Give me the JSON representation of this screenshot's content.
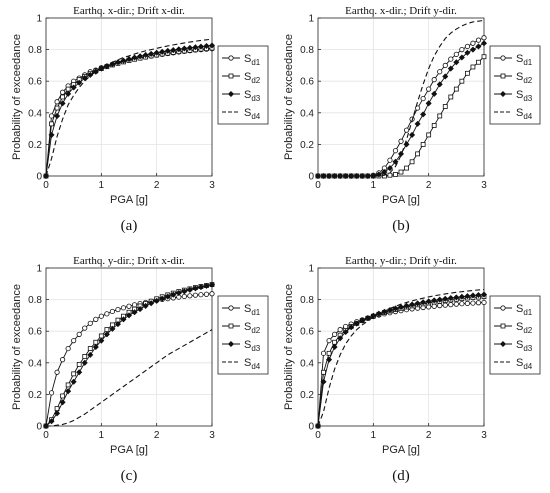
{
  "chart_data": [
    {
      "type": "line",
      "panel_label": "(a)",
      "title": "Earthq. x-dir.; Drift x-dir.",
      "xlabel": "PGA [g]",
      "ylabel": "Probability of exceedance",
      "xlim": [
        0,
        3
      ],
      "ylim": [
        0,
        1
      ],
      "xticks": [
        "0",
        "1",
        "2",
        "3"
      ],
      "yticks": [
        "0",
        "0.2",
        "0.4",
        "0.6",
        "0.8",
        "1"
      ],
      "grid": true,
      "legend_position": "right",
      "x": [
        0,
        0.1,
        0.2,
        0.3,
        0.4,
        0.5,
        0.6,
        0.7,
        0.8,
        0.9,
        1.0,
        1.1,
        1.2,
        1.3,
        1.4,
        1.5,
        1.6,
        1.7,
        1.8,
        1.9,
        2.0,
        2.1,
        2.2,
        2.3,
        2.4,
        2.5,
        2.6,
        2.7,
        2.8,
        2.9,
        3.0
      ],
      "series": [
        {
          "label_main": "S",
          "label_sub": "d1",
          "marker": "circle",
          "dash": "solid",
          "values": [
            0,
            0.38,
            0.47,
            0.53,
            0.57,
            0.6,
            0.62,
            0.64,
            0.66,
            0.67,
            0.685,
            0.695,
            0.705,
            0.715,
            0.725,
            0.733,
            0.74,
            0.747,
            0.753,
            0.759,
            0.765,
            0.77,
            0.775,
            0.78,
            0.785,
            0.789,
            0.793,
            0.797,
            0.8,
            0.803,
            0.806
          ]
        },
        {
          "label_main": "S",
          "label_sub": "d2",
          "marker": "square",
          "dash": "solid",
          "values": [
            0,
            0.33,
            0.43,
            0.5,
            0.55,
            0.58,
            0.61,
            0.63,
            0.65,
            0.665,
            0.68,
            0.692,
            0.703,
            0.713,
            0.722,
            0.731,
            0.739,
            0.746,
            0.753,
            0.76,
            0.766,
            0.772,
            0.777,
            0.782,
            0.787,
            0.791,
            0.795,
            0.799,
            0.803,
            0.806,
            0.81
          ]
        },
        {
          "label_main": "S",
          "label_sub": "d3",
          "marker": "diamond",
          "dash": "solid",
          "values": [
            0,
            0.26,
            0.38,
            0.46,
            0.52,
            0.56,
            0.59,
            0.62,
            0.64,
            0.66,
            0.68,
            0.695,
            0.708,
            0.72,
            0.73,
            0.74,
            0.75,
            0.758,
            0.766,
            0.773,
            0.78,
            0.786,
            0.792,
            0.797,
            0.802,
            0.807,
            0.811,
            0.815,
            0.819,
            0.823,
            0.826
          ]
        },
        {
          "label_main": "S",
          "label_sub": "d4",
          "marker": "none",
          "dash": "dashed",
          "values": [
            0,
            0.11,
            0.25,
            0.36,
            0.45,
            0.51,
            0.56,
            0.6,
            0.635,
            0.66,
            0.685,
            0.705,
            0.72,
            0.735,
            0.75,
            0.76,
            0.772,
            0.783,
            0.792,
            0.8,
            0.808,
            0.816,
            0.823,
            0.83,
            0.836,
            0.842,
            0.848,
            0.853,
            0.858,
            0.862,
            0.866
          ]
        }
      ]
    },
    {
      "type": "line",
      "panel_label": "(b)",
      "title": "Earthq. x-dir.; Drift y-dir.",
      "xlabel": "PGA [g]",
      "ylabel": "Probability of exceedance",
      "xlim": [
        0,
        3
      ],
      "ylim": [
        0,
        1
      ],
      "xticks": [
        "0",
        "1",
        "2",
        "3"
      ],
      "yticks": [
        "0",
        "0.2",
        "0.4",
        "0.6",
        "0.8",
        "1"
      ],
      "grid": true,
      "legend_position": "right",
      "x": [
        0,
        0.1,
        0.2,
        0.3,
        0.4,
        0.5,
        0.6,
        0.7,
        0.8,
        0.9,
        1.0,
        1.1,
        1.2,
        1.3,
        1.4,
        1.5,
        1.6,
        1.7,
        1.8,
        1.9,
        2.0,
        2.1,
        2.2,
        2.3,
        2.4,
        2.5,
        2.6,
        2.7,
        2.8,
        2.9,
        3.0
      ],
      "series": [
        {
          "label_main": "S",
          "label_sub": "d1",
          "marker": "circle",
          "dash": "solid",
          "values": [
            0,
            0,
            0,
            0,
            0,
            0,
            0,
            0,
            0,
            0,
            0.005,
            0.02,
            0.05,
            0.1,
            0.16,
            0.22,
            0.29,
            0.36,
            0.43,
            0.49,
            0.55,
            0.61,
            0.66,
            0.7,
            0.74,
            0.77,
            0.8,
            0.82,
            0.84,
            0.86,
            0.875
          ]
        },
        {
          "label_main": "S",
          "label_sub": "d2",
          "marker": "square",
          "dash": "solid",
          "values": [
            0,
            0,
            0,
            0,
            0,
            0,
            0,
            0,
            0,
            0,
            0,
            0,
            0,
            0.005,
            0.01,
            0.025,
            0.05,
            0.09,
            0.14,
            0.2,
            0.26,
            0.32,
            0.38,
            0.44,
            0.5,
            0.55,
            0.6,
            0.65,
            0.69,
            0.72,
            0.755
          ]
        },
        {
          "label_main": "S",
          "label_sub": "d3",
          "marker": "diamond",
          "dash": "solid",
          "values": [
            0,
            0,
            0,
            0,
            0,
            0,
            0,
            0,
            0,
            0,
            0,
            0.01,
            0.025,
            0.05,
            0.09,
            0.14,
            0.2,
            0.26,
            0.33,
            0.39,
            0.46,
            0.52,
            0.58,
            0.63,
            0.68,
            0.72,
            0.75,
            0.78,
            0.8,
            0.82,
            0.84
          ]
        },
        {
          "label_main": "S",
          "label_sub": "d4",
          "marker": "none",
          "dash": "dashed",
          "values": [
            0,
            0,
            0,
            0,
            0,
            0,
            0,
            0,
            0,
            0,
            0,
            0,
            0.005,
            0.02,
            0.06,
            0.13,
            0.23,
            0.35,
            0.47,
            0.58,
            0.68,
            0.76,
            0.82,
            0.87,
            0.905,
            0.93,
            0.95,
            0.965,
            0.975,
            0.98,
            0.985
          ]
        }
      ]
    },
    {
      "type": "line",
      "panel_label": "(c)",
      "title": "Earthq. y-dir.; Drift x-dir.",
      "xlabel": "PGA [g]",
      "ylabel": "Probability of exceedance",
      "xlim": [
        0,
        3
      ],
      "ylim": [
        0,
        1
      ],
      "xticks": [
        "0",
        "1",
        "2",
        "3"
      ],
      "yticks": [
        "0",
        "0.2",
        "0.4",
        "0.6",
        "0.8",
        "1"
      ],
      "grid": true,
      "legend_position": "right",
      "x": [
        0,
        0.1,
        0.2,
        0.3,
        0.4,
        0.5,
        0.6,
        0.7,
        0.8,
        0.9,
        1.0,
        1.1,
        1.2,
        1.3,
        1.4,
        1.5,
        1.6,
        1.7,
        1.8,
        1.9,
        2.0,
        2.1,
        2.2,
        2.3,
        2.4,
        2.5,
        2.6,
        2.7,
        2.8,
        2.9,
        3.0
      ],
      "series": [
        {
          "label_main": "S",
          "label_sub": "d1",
          "marker": "circle",
          "dash": "solid",
          "values": [
            0,
            0.21,
            0.34,
            0.42,
            0.49,
            0.54,
            0.58,
            0.62,
            0.65,
            0.675,
            0.695,
            0.71,
            0.725,
            0.737,
            0.748,
            0.758,
            0.767,
            0.775,
            0.782,
            0.789,
            0.795,
            0.801,
            0.806,
            0.811,
            0.816,
            0.82,
            0.824,
            0.828,
            0.831,
            0.834,
            0.837
          ]
        },
        {
          "label_main": "S",
          "label_sub": "d2",
          "marker": "square",
          "dash": "solid",
          "values": [
            0,
            0.04,
            0.11,
            0.19,
            0.26,
            0.33,
            0.39,
            0.44,
            0.49,
            0.53,
            0.57,
            0.61,
            0.64,
            0.67,
            0.695,
            0.72,
            0.74,
            0.76,
            0.775,
            0.79,
            0.805,
            0.818,
            0.83,
            0.841,
            0.851,
            0.86,
            0.868,
            0.876,
            0.883,
            0.889,
            0.895
          ]
        },
        {
          "label_main": "S",
          "label_sub": "d3",
          "marker": "diamond",
          "dash": "solid",
          "values": [
            0,
            0.03,
            0.08,
            0.15,
            0.22,
            0.28,
            0.34,
            0.4,
            0.45,
            0.5,
            0.54,
            0.58,
            0.615,
            0.645,
            0.675,
            0.7,
            0.72,
            0.74,
            0.76,
            0.777,
            0.792,
            0.806,
            0.819,
            0.831,
            0.842,
            0.852,
            0.862,
            0.871,
            0.879,
            0.887,
            0.894
          ]
        },
        {
          "label_main": "S",
          "label_sub": "d4",
          "marker": "none",
          "dash": "dashed",
          "values": [
            0,
            0,
            0.005,
            0.01,
            0.02,
            0.035,
            0.055,
            0.075,
            0.1,
            0.125,
            0.15,
            0.175,
            0.2,
            0.225,
            0.25,
            0.275,
            0.3,
            0.325,
            0.35,
            0.375,
            0.4,
            0.425,
            0.45,
            0.47,
            0.49,
            0.51,
            0.53,
            0.55,
            0.57,
            0.59,
            0.61
          ]
        }
      ]
    },
    {
      "type": "line",
      "panel_label": "(d)",
      "title": "Earthq. y-dir.; Drift y-dir.",
      "xlabel": "PGA [g]",
      "ylabel": "Probability of exceedance",
      "xlim": [
        0,
        3
      ],
      "ylim": [
        0,
        1
      ],
      "xticks": [
        "0",
        "1",
        "2",
        "3"
      ],
      "yticks": [
        "0",
        "0.2",
        "0.4",
        "0.6",
        "0.8",
        "1"
      ],
      "grid": true,
      "legend_position": "right",
      "x": [
        0,
        0.1,
        0.2,
        0.3,
        0.4,
        0.5,
        0.6,
        0.7,
        0.8,
        0.9,
        1.0,
        1.1,
        1.2,
        1.3,
        1.4,
        1.5,
        1.6,
        1.7,
        1.8,
        1.9,
        2.0,
        2.1,
        2.2,
        2.3,
        2.4,
        2.5,
        2.6,
        2.7,
        2.8,
        2.9,
        3.0
      ],
      "series": [
        {
          "label_main": "S",
          "label_sub": "d1",
          "marker": "circle",
          "dash": "solid",
          "values": [
            0,
            0.46,
            0.54,
            0.58,
            0.61,
            0.63,
            0.645,
            0.66,
            0.672,
            0.683,
            0.693,
            0.702,
            0.71,
            0.717,
            0.724,
            0.73,
            0.736,
            0.741,
            0.746,
            0.75,
            0.754,
            0.758,
            0.762,
            0.765,
            0.768,
            0.771,
            0.774,
            0.776,
            0.778,
            0.78,
            0.782
          ]
        },
        {
          "label_main": "S",
          "label_sub": "d2",
          "marker": "square",
          "dash": "solid",
          "values": [
            0,
            0.34,
            0.46,
            0.53,
            0.575,
            0.605,
            0.63,
            0.65,
            0.667,
            0.682,
            0.695,
            0.707,
            0.718,
            0.728,
            0.737,
            0.745,
            0.753,
            0.76,
            0.767,
            0.773,
            0.779,
            0.784,
            0.789,
            0.794,
            0.798,
            0.802,
            0.806,
            0.81,
            0.813,
            0.816,
            0.819
          ]
        },
        {
          "label_main": "S",
          "label_sub": "d3",
          "marker": "diamond",
          "dash": "solid",
          "values": [
            0,
            0.28,
            0.42,
            0.5,
            0.555,
            0.595,
            0.625,
            0.648,
            0.667,
            0.683,
            0.698,
            0.711,
            0.723,
            0.734,
            0.744,
            0.753,
            0.761,
            0.769,
            0.776,
            0.783,
            0.789,
            0.795,
            0.8,
            0.805,
            0.81,
            0.814,
            0.818,
            0.822,
            0.826,
            0.829,
            0.832
          ]
        },
        {
          "label_main": "S",
          "label_sub": "d4",
          "marker": "none",
          "dash": "dashed",
          "values": [
            0,
            0.09,
            0.24,
            0.36,
            0.45,
            0.52,
            0.57,
            0.61,
            0.64,
            0.665,
            0.69,
            0.71,
            0.728,
            0.744,
            0.758,
            0.771,
            0.782,
            0.792,
            0.801,
            0.809,
            0.817,
            0.824,
            0.83,
            0.836,
            0.841,
            0.846,
            0.85,
            0.854,
            0.858,
            0.861,
            0.864
          ]
        }
      ]
    }
  ]
}
